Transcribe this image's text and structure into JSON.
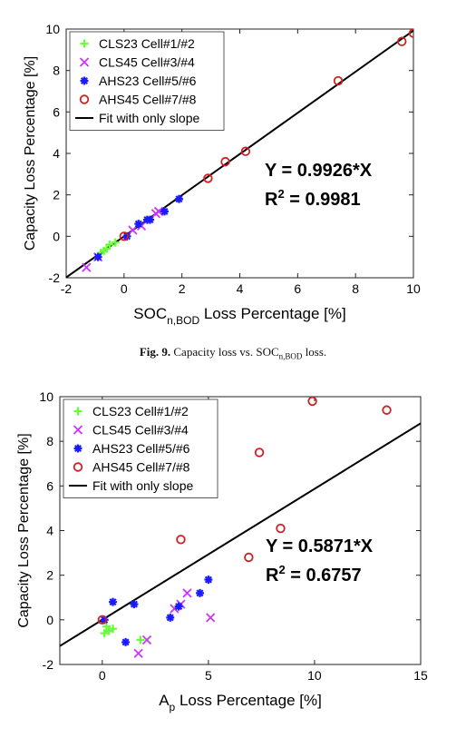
{
  "chart_data": [
    {
      "type": "scatter",
      "xlabel_main": "SOC",
      "xlabel_sub": "n,BOD",
      "xlabel_rest": " Loss Percentage [%]",
      "ylabel": "Capacity Loss Percentage [%]",
      "xlim": [
        -2,
        10
      ],
      "ylim": [
        -2,
        10
      ],
      "x_ticks": [
        "-2",
        "0",
        "2",
        "4",
        "6",
        "8",
        "10"
      ],
      "y_ticks": [
        "-2",
        "0",
        "2",
        "4",
        "6",
        "8",
        "10"
      ],
      "grid": false,
      "legend_position": "top-left",
      "series": [
        {
          "name": "CLS23 Cell#1/#2",
          "marker": "plus",
          "color": "#66ff33",
          "x": [
            -0.8,
            -0.6,
            -0.5,
            -0.3,
            -0.7
          ],
          "y": [
            -0.8,
            -0.6,
            -0.4,
            -0.3,
            -0.7
          ]
        },
        {
          "name": "CLS45 Cell#3/#4",
          "marker": "x",
          "color": "#cc33ff",
          "x": [
            -1.3,
            -0.9,
            0.3,
            1.1,
            1.2,
            0.6
          ],
          "y": [
            -1.5,
            -1.0,
            0.3,
            1.1,
            1.2,
            0.5
          ]
        },
        {
          "name": "AHS23 Cell#5/#6",
          "marker": "star",
          "color": "#1a1aff",
          "x": [
            -0.9,
            0.5,
            0.8,
            0.9,
            1.4,
            1.9,
            0.1
          ],
          "y": [
            -1.0,
            0.6,
            0.8,
            0.8,
            1.2,
            1.8,
            0.0
          ]
        },
        {
          "name": "AHS45 Cell#7/#8",
          "marker": "circle",
          "color": "#cc2222",
          "x": [
            0,
            2.9,
            3.5,
            4.2,
            7.4,
            9.6,
            10
          ],
          "y": [
            0,
            2.8,
            3.6,
            4.1,
            7.5,
            9.4,
            9.8
          ]
        },
        {
          "name": "Fit with only slope",
          "marker": "line",
          "color": "#000000",
          "slope": 0.9926
        }
      ],
      "annotation_eq": "Y = 0.9926*X",
      "annotation_r2_base": "R",
      "annotation_r2_sup": "2",
      "annotation_r2_rest": " = 0.9981"
    },
    {
      "type": "scatter",
      "xlabel_main": "A",
      "xlabel_sub": "p",
      "xlabel_rest": " Loss Percentage [%]",
      "ylabel": "Capacity Loss Percentage [%]",
      "xlim": [
        -2,
        15
      ],
      "ylim": [
        -2,
        10
      ],
      "x_ticks": [
        "0",
        "5",
        "10",
        "15"
      ],
      "y_ticks": [
        "-2",
        "0",
        "2",
        "4",
        "6",
        "8",
        "10"
      ],
      "grid": false,
      "legend_position": "top-left",
      "series": [
        {
          "name": "CLS23 Cell#1/#2",
          "marker": "plus",
          "color": "#66ff33",
          "x": [
            0.1,
            0.3,
            0.5,
            0.2,
            1.8
          ],
          "y": [
            -0.6,
            -0.5,
            -0.4,
            -0.3,
            -0.9
          ]
        },
        {
          "name": "CLS45 Cell#3/#4",
          "marker": "x",
          "color": "#cc33ff",
          "x": [
            1.7,
            2.1,
            3.7,
            4.0,
            5.1,
            3.4
          ],
          "y": [
            -1.5,
            -0.9,
            0.7,
            1.2,
            0.1,
            0.5
          ]
        },
        {
          "name": "AHS23 Cell#5/#6",
          "marker": "star",
          "color": "#1a1aff",
          "x": [
            0.5,
            1.1,
            1.5,
            3.2,
            3.6,
            4.6,
            5.0,
            0.1
          ],
          "y": [
            0.8,
            -1.0,
            0.7,
            0.1,
            0.6,
            1.2,
            1.8,
            0.0
          ]
        },
        {
          "name": "AHS45 Cell#7/#8",
          "marker": "circle",
          "color": "#cc2222",
          "x": [
            0,
            3.7,
            6.9,
            7.4,
            8.4,
            9.9,
            13.4
          ],
          "y": [
            0,
            3.6,
            2.8,
            7.5,
            4.1,
            9.8,
            9.4
          ]
        },
        {
          "name": "Fit with only slope",
          "marker": "line",
          "color": "#000000",
          "slope": 0.5871
        }
      ],
      "annotation_eq": "Y = 0.5871*X",
      "annotation_r2_base": "R",
      "annotation_r2_sup": "2",
      "annotation_r2_rest": " = 0.6757"
    }
  ],
  "captions": [
    {
      "label": "Fig. 9.",
      "text_main": " Capacity loss vs. SOC",
      "text_sub": "n,BOD",
      "text_rest": " loss."
    }
  ]
}
